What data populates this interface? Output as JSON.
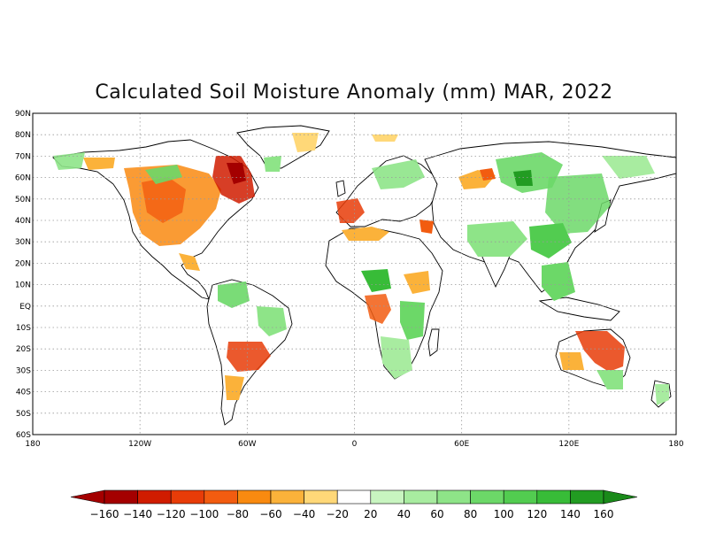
{
  "title": "Calculated Soil Moisture Anomaly (mm) MAR, 2022",
  "map": {
    "lon_range": [
      -180,
      180
    ],
    "lat_range": [
      -60,
      90
    ],
    "grid": "dotted",
    "lat_labels": [
      "90N",
      "80N",
      "70N",
      "60N",
      "50N",
      "40N",
      "30N",
      "20N",
      "10N",
      "EQ",
      "10S",
      "20S",
      "30S",
      "40S",
      "50S",
      "60S"
    ],
    "lon_labels": [
      "180",
      "120W",
      "60W",
      "0",
      "60E",
      "120E",
      "180"
    ]
  },
  "colorbar": {
    "unit": "mm",
    "levels": [
      "-160",
      "-140",
      "-120",
      "-100",
      "-80",
      "-60",
      "-40",
      "-20",
      "20",
      "40",
      "60",
      "80",
      "100",
      "120",
      "140",
      "160"
    ],
    "colors": [
      "#a40000",
      "#d01c00",
      "#e83c08",
      "#f25c10",
      "#f98a10",
      "#fbb23a",
      "#ffd878",
      "#ffffff",
      "#c8f5c0",
      "#a8ecA0",
      "#8ee488",
      "#6cd868",
      "#52cc50",
      "#38bc38",
      "#229c22"
    ],
    "low_color": "#a40000",
    "high_color": "#1a8a1a"
  }
}
